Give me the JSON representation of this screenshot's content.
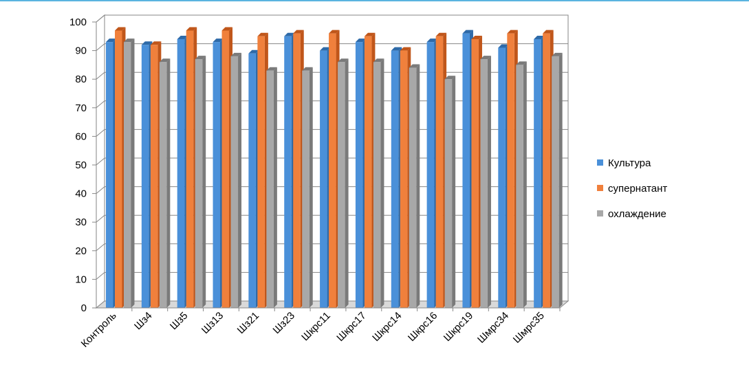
{
  "colors": {
    "top_rule": "#5ab4e0",
    "wall_back": "#ffffff",
    "wall_border": "#868686",
    "gridline": "#868686",
    "floor": "#d9d9d9"
  },
  "chart_data": {
    "type": "bar",
    "title": "",
    "xlabel": "",
    "ylabel": "",
    "ylim": [
      0,
      100
    ],
    "ytick_step": 10,
    "grid": true,
    "legend": "right",
    "categories": [
      "Контроль",
      "Шз4",
      "Шз5",
      "Шз13",
      "Шз21",
      "Шз23",
      "Шкрс11",
      "Шкрс17",
      "Шкрс14",
      "Шкрс16",
      "Шкрс19",
      "Шмрс34",
      "Шмрс35"
    ],
    "series": [
      {
        "name": "Культура",
        "color": "#4a90d9",
        "color_dark": "#2e6aa8",
        "values": [
          93,
          92,
          94,
          93,
          89,
          95,
          90,
          93,
          90,
          93,
          96,
          91,
          94
        ]
      },
      {
        "name": "супернатант",
        "color": "#f0803c",
        "color_dark": "#c0561a",
        "values": [
          97,
          92,
          97,
          97,
          95,
          96,
          96,
          95,
          90,
          95,
          94,
          96,
          96
        ]
      },
      {
        "name": "охлаждение",
        "color": "#a8a8a8",
        "color_dark": "#7a7a7a",
        "values": [
          93,
          86,
          87,
          88,
          83,
          83,
          86,
          86,
          84,
          80,
          87,
          85,
          88
        ]
      }
    ]
  }
}
